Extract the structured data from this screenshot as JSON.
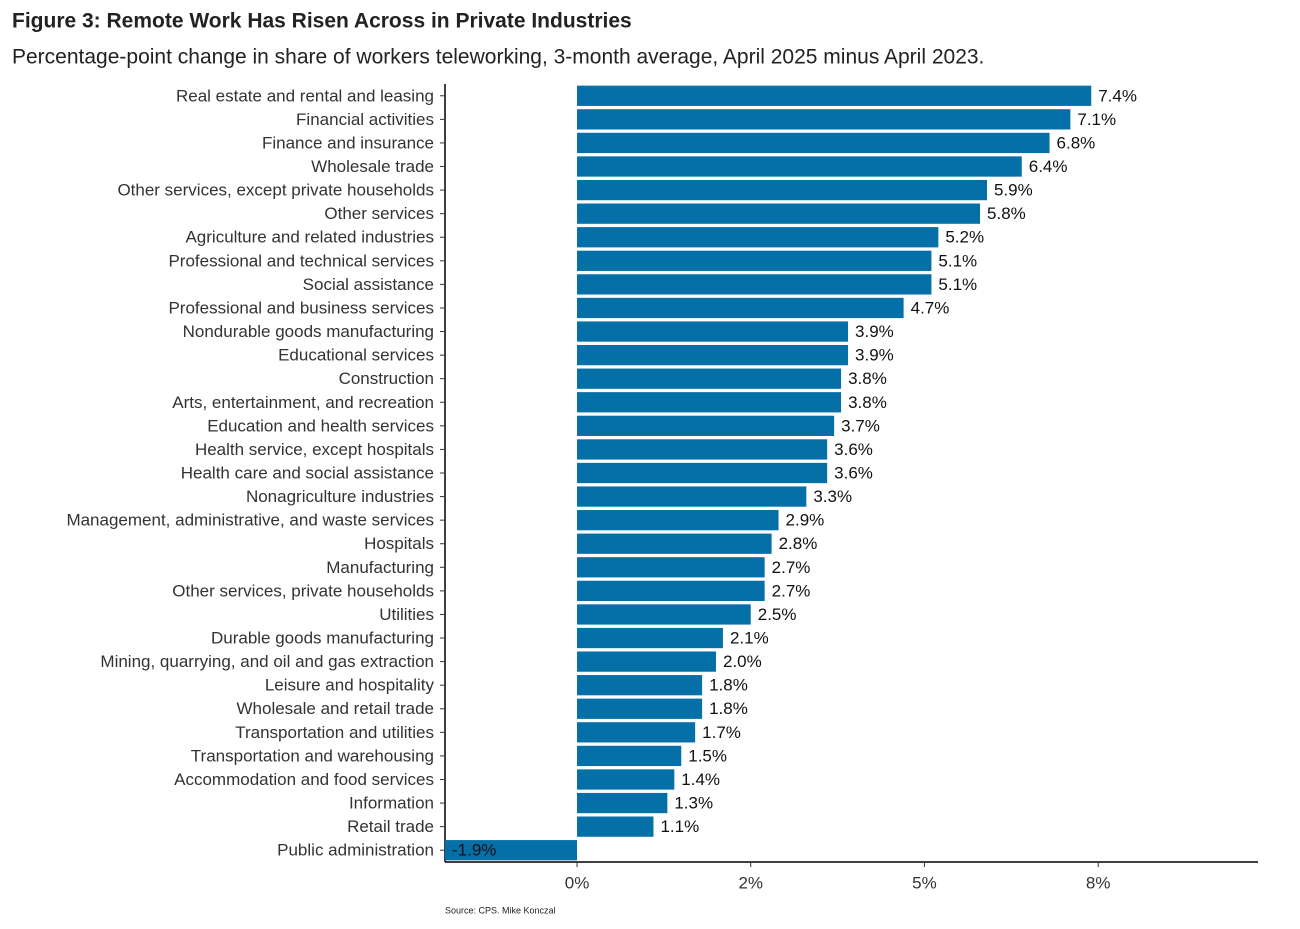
{
  "chart_data": {
    "type": "bar",
    "orientation": "horizontal",
    "title": "Figure 3: Remote Work Has Risen Across in Private Industries",
    "subtitle": "Percentage-point change in share of workers teleworking, 3-month average, April 2025 minus April 2023.",
    "caption": "Source: CPS. Mike Konczal",
    "color": "#0570a8",
    "categories": [
      "Real estate and rental and leasing",
      "Financial activities",
      "Finance and insurance",
      "Wholesale trade",
      "Other services, except private households",
      "Other services",
      "Agriculture and related industries",
      "Professional and technical services",
      "Social assistance",
      "Professional and business services",
      "Nondurable goods manufacturing",
      "Educational services",
      "Construction",
      "Arts, entertainment, and recreation",
      "Education and health services",
      "Health service, except hospitals",
      "Health care and social assistance",
      "Nonagriculture industries",
      "Management, administrative, and waste services",
      "Hospitals",
      "Manufacturing",
      "Other services, private households",
      "Utilities",
      "Durable goods manufacturing",
      "Mining, quarrying, and oil and gas extraction",
      "Leisure and hospitality",
      "Wholesale and retail trade",
      "Transportation and utilities",
      "Transportation and warehousing",
      "Accommodation and food services",
      "Information",
      "Retail trade",
      "Public administration"
    ],
    "values": [
      7.4,
      7.1,
      6.8,
      6.4,
      5.9,
      5.8,
      5.2,
      5.1,
      5.1,
      4.7,
      3.9,
      3.9,
      3.8,
      3.8,
      3.7,
      3.6,
      3.6,
      3.3,
      2.9,
      2.8,
      2.7,
      2.7,
      2.5,
      2.1,
      2.0,
      1.8,
      1.8,
      1.7,
      1.5,
      1.4,
      1.3,
      1.1,
      -1.9
    ],
    "value_labels": [
      "7.4%",
      "7.1%",
      "6.8%",
      "6.4%",
      "5.9%",
      "5.8%",
      "5.2%",
      "5.1%",
      "5.1%",
      "4.7%",
      "3.9%",
      "3.9%",
      "3.8%",
      "3.8%",
      "3.7%",
      "3.6%",
      "3.6%",
      "3.3%",
      "2.9%",
      "2.8%",
      "2.7%",
      "2.7%",
      "2.5%",
      "2.1%",
      "2.0%",
      "1.8%",
      "1.8%",
      "1.7%",
      "1.5%",
      "1.4%",
      "1.3%",
      "1.1%",
      "-1.9%"
    ],
    "xlim": [
      -1.9,
      9.8
    ],
    "xticks": [
      {
        "value": 0,
        "label": "0%"
      },
      {
        "value": 2.5,
        "label": "2%"
      },
      {
        "value": 5,
        "label": "5%"
      },
      {
        "value": 7.5,
        "label": "8%"
      }
    ],
    "grid": false
  }
}
